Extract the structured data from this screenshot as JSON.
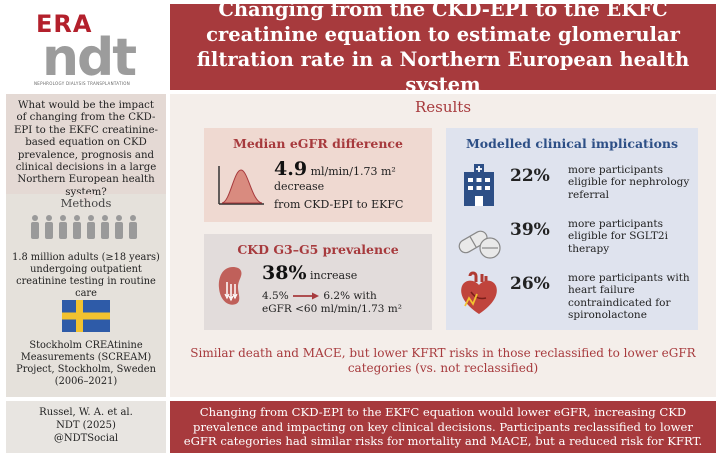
{
  "logo": {
    "era": "ERA",
    "ndt": "ndt",
    "subtitle": "NEPHROLOGY DIALYSIS TRANSPLANTATION"
  },
  "header": {
    "title": "Changing from the CKD-EPI to the EKFC creatinine equation to estimate glomerular filtration rate in a Northern European health system"
  },
  "left": {
    "question": "What would be the impact of changing from the CKD-EPI to the EKFC creatinine-based equation on CKD prevalence, prognosis and clinical decisions in a large Northern European health system?",
    "methods_label": "Methods",
    "methods_text": "1.8 million adults (≥18 years) undergoing outpatient creatinine testing in routine care",
    "scream_text": "Stockholm CREAtinine Measurements (SCREAM) Project, Stockholm, Sweden (2006–2021)"
  },
  "results": {
    "title": "Results",
    "median": {
      "title": "Median eGFR difference",
      "value": "4.9",
      "unit": "ml/min/1.73 m²",
      "direction": "decrease",
      "from": "from CKD-EPI to EKFC"
    },
    "ckd": {
      "title": "CKD G3–G5 prevalence",
      "pct": "38%",
      "pct_label": "increase",
      "from_pct": "4.5%",
      "to_pct": "6.2% with",
      "threshold": "eGFR <60 ml/min/1.73 m²"
    },
    "model": {
      "title": "Modelled clinical implications",
      "items": [
        {
          "pct": "22%",
          "text": "more participants eligible for nephrology referral",
          "icon": "hospital-icon"
        },
        {
          "pct": "39%",
          "text": "more participants eligible for SGLT2i therapy",
          "icon": "pills-icon"
        },
        {
          "pct": "26%",
          "text": "more participants with heart failure contraindicated for spironolactone",
          "icon": "heart-icon"
        }
      ]
    },
    "conclusion": "Similar death and MACE, but lower KFRT risks in those reclassified to lower eGFR categories (vs. not reclassified)"
  },
  "footer": {
    "citation_line1": "Russel, W. A. et al.",
    "citation_line2": "NDT (2025)",
    "citation_line3": "@NDTSocial",
    "summary": "Changing from CKD-EPI to the EKFC equation would lower eGFR, increasing CKD prevalence and impacting on key clinical decisions. Participants reclassified to lower eGFR categories had similar risks for mortality and MACE, but a reduced risk for KFRT."
  },
  "colors": {
    "brand_red": "#a73a3d",
    "heading_blue": "#2d4f86",
    "flag_blue": "#2e5ba8",
    "flag_yellow": "#f2c230"
  }
}
